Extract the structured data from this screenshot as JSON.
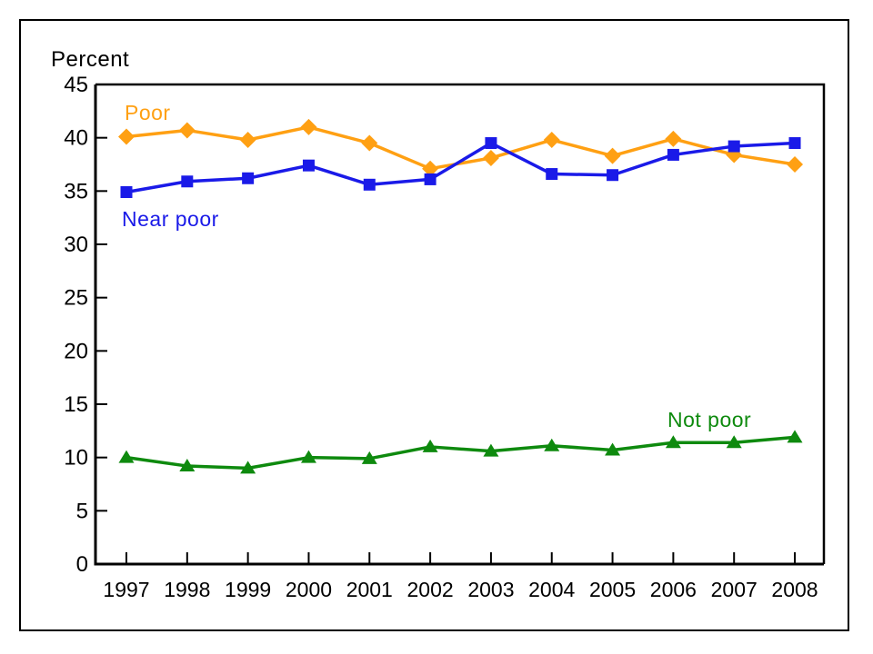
{
  "axis_title": "Percent",
  "chart_data": {
    "type": "line",
    "title": "",
    "xlabel": "",
    "ylabel": "Percent",
    "ylim": [
      0,
      45
    ],
    "ytick_step": 5,
    "grid": false,
    "legend_position": "inline-labels-near-lines",
    "x": [
      1997,
      1998,
      1999,
      2000,
      2001,
      2002,
      2003,
      2004,
      2005,
      2006,
      2007,
      2008
    ],
    "series": [
      {
        "name": "Poor",
        "color": "#FFA013",
        "marker": "diamond",
        "values": [
          40.1,
          40.7,
          39.8,
          41.0,
          39.5,
          37.1,
          38.1,
          39.8,
          38.3,
          39.9,
          38.4,
          37.5
        ]
      },
      {
        "name": "Near poor",
        "color": "#1A1AE8",
        "marker": "square",
        "values": [
          34.9,
          35.9,
          36.2,
          37.4,
          35.6,
          36.1,
          39.5,
          36.6,
          36.5,
          38.4,
          39.2,
          39.5
        ]
      },
      {
        "name": "Not poor",
        "color": "#0E8A0E",
        "marker": "triangle",
        "values": [
          10.0,
          9.2,
          9.0,
          10.0,
          9.9,
          11.0,
          10.6,
          11.1,
          10.7,
          11.4,
          11.4,
          11.9
        ]
      }
    ]
  }
}
